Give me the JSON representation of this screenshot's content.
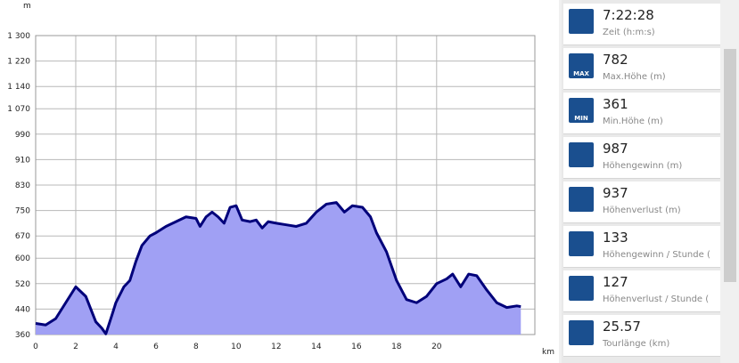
{
  "chart_data": {
    "type": "area",
    "y_unit": "m",
    "x_unit": "km",
    "x": [
      0,
      0.5,
      1,
      1.5,
      2,
      2.5,
      3,
      3.3,
      3.5,
      3.8,
      4,
      4.4,
      4.7,
      5,
      5.3,
      5.7,
      6,
      6.5,
      7,
      7.5,
      8,
      8.2,
      8.5,
      8.8,
      9.1,
      9.4,
      9.7,
      10,
      10.3,
      10.7,
      11,
      11.3,
      11.6,
      12,
      12.5,
      13,
      13.5,
      14,
      14.5,
      15,
      15.4,
      15.8,
      16.3,
      16.7,
      17,
      17.5,
      18,
      18.5,
      19,
      19.5,
      20,
      20.5,
      20.8,
      21.2,
      21.6,
      22,
      22.5,
      23,
      23.5,
      24,
      24.2
    ],
    "values": [
      395,
      390,
      410,
      460,
      510,
      480,
      400,
      380,
      362,
      420,
      460,
      510,
      530,
      590,
      640,
      670,
      680,
      700,
      715,
      730,
      725,
      700,
      730,
      745,
      730,
      710,
      760,
      765,
      720,
      715,
      720,
      695,
      715,
      710,
      705,
      700,
      710,
      745,
      770,
      775,
      745,
      765,
      760,
      730,
      680,
      620,
      530,
      470,
      460,
      480,
      520,
      535,
      550,
      510,
      550,
      545,
      500,
      460,
      445,
      450,
      448
    ],
    "color": "#a0a0f4",
    "line_color": "#00007a",
    "xlim": [
      0,
      24.9
    ],
    "ylim": [
      360,
      1300
    ],
    "xticks": [
      0,
      2,
      4,
      6,
      8,
      10,
      12,
      14,
      16,
      18,
      20
    ],
    "yticks": [
      360,
      440,
      520,
      600,
      670,
      750,
      830,
      910,
      990,
      {
        "value": 1070,
        "label": "1 070"
      },
      {
        "value": 1140,
        "label": "1 140"
      },
      {
        "value": 1220,
        "label": "1 220"
      },
      {
        "value": 1300,
        "label": "1 300"
      }
    ],
    "grid": true
  },
  "panel": {
    "items": [
      {
        "value": "7:22:28",
        "label": "Zeit (h:m:s)"
      },
      {
        "value": "782",
        "label": "Max.Höhe (m)",
        "icon": "MAX"
      },
      {
        "value": "361",
        "label": "Min.Höhe (m)",
        "icon": "MIN"
      },
      {
        "value": "987",
        "label": "Höhengewinn (m)"
      },
      {
        "value": "937",
        "label": "Höhenverlust (m)"
      },
      {
        "value": "133",
        "label": "Höhengewinn  / Stunde ("
      },
      {
        "value": "127",
        "label": "Höhenverlust / Stunde ("
      },
      {
        "value": "25.57",
        "label": "Tourlänge (km)"
      }
    ]
  }
}
